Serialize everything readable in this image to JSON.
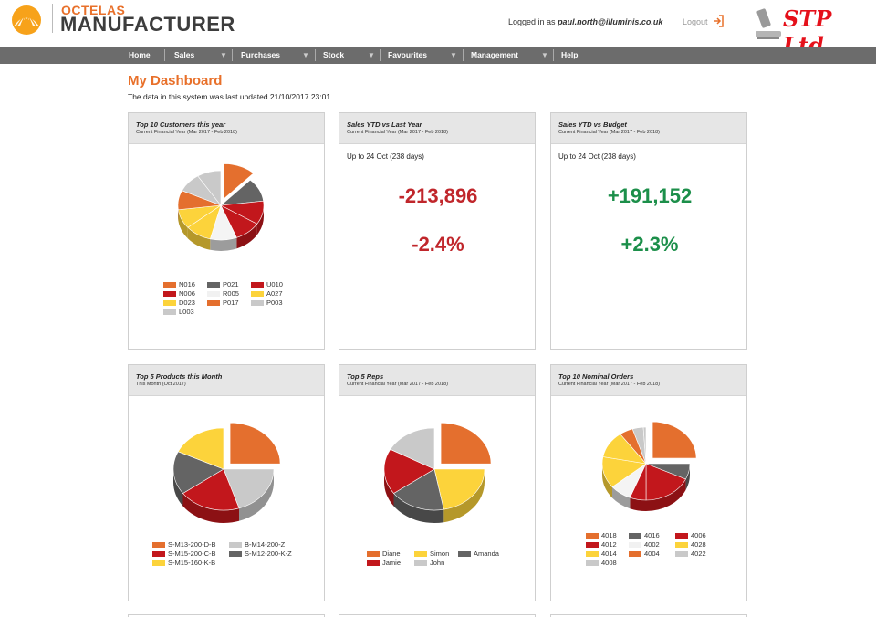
{
  "header": {
    "brand_line1": "OCTELAS",
    "brand_line2": "MANUFACTURER",
    "logged_prefix": "Logged in as",
    "logged_user": "paul.north@illuminis.co.uk",
    "logout_label": "Logout",
    "partner_logo_text": "STP Ltd",
    "icons": {
      "brand": "sun-logo-icon",
      "logout": "logout-icon",
      "partner": "stapler-logo-icon"
    }
  },
  "nav": {
    "items": [
      {
        "label": "Home",
        "dropdown": false
      },
      {
        "label": "Sales",
        "dropdown": true
      },
      {
        "label": "Purchases",
        "dropdown": true
      },
      {
        "label": "Stock",
        "dropdown": true
      },
      {
        "label": "Favourites",
        "dropdown": true
      },
      {
        "label": "Management",
        "dropdown": true
      },
      {
        "label": "Help",
        "dropdown": false
      }
    ],
    "arrow_glyph": "▼"
  },
  "page": {
    "title": "My Dashboard",
    "subtitle": "The data in this system was last updated 21/10/2017 23:01"
  },
  "colors": {
    "accent": "#e8702a",
    "nav_bg": "#6c6c6c",
    "negative": "#c0262b",
    "positive": "#1c8f4a",
    "orange": "#e46f2e",
    "darkgrey": "#646464",
    "red": "#c2171c",
    "white": "#f4f4f4",
    "yellow": "#fcd33b",
    "lightgrey": "#c9c9c9"
  },
  "panels": {
    "customers": {
      "title": "Top 10 Customers this year",
      "sub": "Current Financial Year (Mar 2017 - Feb 2018)"
    },
    "sales_vs_last": {
      "title": "Sales YTD vs Last Year",
      "sub": "Current Financial Year (Mar 2017 - Feb 2018)",
      "note": "Up to 24 Oct (238 days)",
      "value": "-213,896",
      "pct": "-2.4%"
    },
    "sales_vs_budget": {
      "title": "Sales YTD vs Budget",
      "sub": "Current Financial Year (Mar 2017 - Feb 2018)",
      "note": "Up to 24 Oct (238 days)",
      "value": "+191,152",
      "pct": "+2.3%"
    },
    "products": {
      "title": "Top 5 Products this Month",
      "sub": "This Month (Oct 2017)"
    },
    "reps": {
      "title": "Top 5 Reps",
      "sub": "Current Financial Year (Mar 2017 - Feb 2018)"
    },
    "nominal": {
      "title": "Top 10 Nominal Orders",
      "sub": "Current Financial Year (Mar 2017 - Feb 2018)"
    }
  },
  "chart_data": [
    {
      "type": "pie",
      "id": "customers",
      "categories": [
        "N016",
        "P021",
        "U010",
        "N006",
        "R005",
        "A027",
        "D023",
        "P017",
        "P003",
        "L003"
      ],
      "colors": [
        "#e46f2e",
        "#646464",
        "#c2171c",
        "#c2171c",
        "#f4f4f4",
        "#fcd33b",
        "#fcd33b",
        "#e46f2e",
        "#c9c9c9",
        "#c9c9c9"
      ],
      "values": [
        12,
        11,
        11,
        10,
        10,
        10,
        9,
        9,
        9,
        9
      ]
    },
    {
      "type": "pie",
      "id": "products",
      "categories": [
        "S-M13-200-D-B",
        "B-M14-200-Z",
        "S-M15-200-C-B",
        "S-M12-200-K-Z",
        "S-M15-160-K-B"
      ],
      "colors": [
        "#e46f2e",
        "#c9c9c9",
        "#c2171c",
        "#646464",
        "#fcd33b"
      ],
      "values": [
        25,
        20,
        20,
        17,
        18
      ]
    },
    {
      "type": "pie",
      "id": "reps",
      "categories": [
        "Diane",
        "Simon",
        "Amanda",
        "Jamie",
        "John"
      ],
      "colors": [
        "#e46f2e",
        "#fcd33b",
        "#646464",
        "#c2171c",
        "#c9c9c9"
      ],
      "values": [
        25,
        22,
        18,
        18,
        17
      ]
    },
    {
      "type": "pie",
      "id": "nominal",
      "categories": [
        "4018",
        "4016",
        "4006",
        "4012",
        "4002",
        "4028",
        "4014",
        "4004",
        "4022",
        "4008"
      ],
      "colors": [
        "#e46f2e",
        "#646464",
        "#c2171c",
        "#c2171c",
        "#f4f4f4",
        "#fcd33b",
        "#fcd33b",
        "#e46f2e",
        "#c9c9c9",
        "#c9c9c9"
      ],
      "values": [
        25,
        7,
        18,
        6,
        8,
        14,
        12,
        5,
        4,
        1
      ]
    }
  ]
}
